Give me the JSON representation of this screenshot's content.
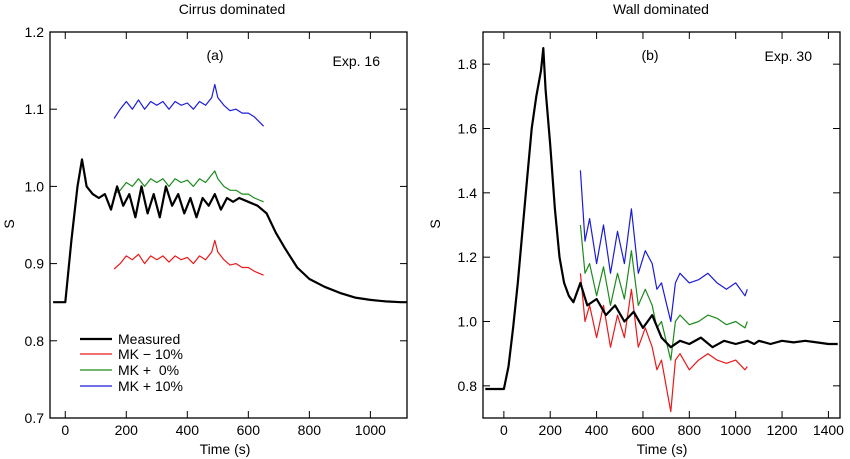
{
  "chart_data": [
    {
      "type": "line",
      "title": "Cirrus dominated",
      "panel_label": "(a)",
      "annotation": "Exp. 16",
      "xlabel": "Time (s)",
      "ylabel": "",
      "xlim": [
        -50,
        1120
      ],
      "ylim": [
        0.7,
        1.2
      ],
      "xticks": [
        0,
        200,
        400,
        600,
        800,
        1000
      ],
      "yticks": [
        0.7,
        0.8,
        0.9,
        1.0,
        1.1,
        1.2
      ],
      "yticklabels": [
        "0.7",
        "0.8",
        "0.9",
        "1.0",
        "1.1",
        "1.2"
      ],
      "legend": {
        "position": "bottom-left",
        "entries": [
          "Measured",
          "MK − 10%",
          "MK +  0%",
          "MK + 10%"
        ]
      },
      "series": [
        {
          "name": "Measured",
          "color": "#000000",
          "x": [
            -40,
            0,
            20,
            40,
            55,
            70,
            90,
            110,
            130,
            150,
            170,
            190,
            210,
            230,
            250,
            270,
            290,
            310,
            330,
            350,
            370,
            390,
            410,
            430,
            450,
            470,
            490,
            510,
            530,
            550,
            570,
            600,
            630,
            660,
            690,
            720,
            760,
            800,
            850,
            900,
            950,
            1000,
            1050,
            1100,
            1120
          ],
          "y": [
            0.85,
            0.85,
            0.93,
            1.0,
            1.035,
            1.0,
            0.99,
            0.985,
            0.99,
            0.97,
            1.0,
            0.975,
            0.99,
            0.96,
            1.0,
            0.965,
            0.99,
            0.96,
            1.0,
            0.975,
            0.99,
            0.965,
            0.985,
            0.96,
            0.985,
            0.975,
            0.99,
            0.97,
            0.985,
            0.98,
            0.985,
            0.98,
            0.975,
            0.965,
            0.94,
            0.92,
            0.895,
            0.88,
            0.87,
            0.862,
            0.856,
            0.853,
            0.851,
            0.85,
            0.85
          ]
        },
        {
          "name": "MK − 10%",
          "color": "#e8191a",
          "x": [
            160,
            180,
            200,
            220,
            240,
            260,
            280,
            300,
            320,
            340,
            360,
            380,
            400,
            420,
            440,
            460,
            480,
            490,
            500,
            520,
            540,
            560,
            580,
            600,
            620,
            650
          ],
          "y": [
            0.893,
            0.9,
            0.91,
            0.905,
            0.912,
            0.9,
            0.91,
            0.905,
            0.91,
            0.902,
            0.91,
            0.905,
            0.908,
            0.9,
            0.91,
            0.905,
            0.915,
            0.93,
            0.915,
            0.905,
            0.898,
            0.9,
            0.895,
            0.895,
            0.89,
            0.885
          ]
        },
        {
          "name": "MK +  0%",
          "color": "#1e8a1e",
          "x": [
            160,
            180,
            200,
            220,
            240,
            260,
            280,
            300,
            320,
            340,
            360,
            380,
            400,
            420,
            440,
            460,
            480,
            490,
            500,
            520,
            540,
            560,
            580,
            600,
            620,
            650
          ],
          "y": [
            0.99,
            0.995,
            1.005,
            1.0,
            1.01,
            1.0,
            1.01,
            1.005,
            1.01,
            1.0,
            1.01,
            1.005,
            1.008,
            1.0,
            1.01,
            1.005,
            1.015,
            1.02,
            1.01,
            1.0,
            0.995,
            0.995,
            0.99,
            0.99,
            0.985,
            0.98
          ]
        },
        {
          "name": "MK + 10%",
          "color": "#1c1cd8",
          "x": [
            160,
            180,
            200,
            220,
            240,
            260,
            280,
            300,
            320,
            340,
            360,
            380,
            400,
            420,
            440,
            460,
            480,
            490,
            500,
            520,
            540,
            560,
            580,
            600,
            620,
            650
          ],
          "y": [
            1.088,
            1.1,
            1.11,
            1.1,
            1.112,
            1.1,
            1.11,
            1.105,
            1.11,
            1.1,
            1.11,
            1.105,
            1.108,
            1.1,
            1.11,
            1.105,
            1.115,
            1.132,
            1.115,
            1.105,
            1.098,
            1.1,
            1.095,
            1.095,
            1.09,
            1.078
          ]
        }
      ]
    },
    {
      "type": "line",
      "title": "Wall dominated",
      "panel_label": "(b)",
      "annotation": "Exp. 30",
      "xlabel": "Time (s)",
      "ylabel": "S",
      "xlim": [
        -90,
        1450
      ],
      "ylim": [
        0.7,
        1.9
      ],
      "xticks": [
        0,
        200,
        400,
        600,
        800,
        1000,
        1200,
        1400
      ],
      "yticks": [
        0.8,
        1.0,
        1.2,
        1.4,
        1.6,
        1.8
      ],
      "yticklabels": [
        "0.8",
        "1.0",
        "1.2",
        "1.4",
        "1.6",
        "1.8"
      ],
      "series": [
        {
          "name": "Measured",
          "color": "#000000",
          "x": [
            -80,
            0,
            20,
            40,
            60,
            80,
            100,
            120,
            140,
            160,
            170,
            180,
            200,
            220,
            240,
            260,
            280,
            300,
            330,
            360,
            400,
            440,
            480,
            520,
            560,
            600,
            640,
            680,
            720,
            760,
            800,
            850,
            900,
            950,
            1000,
            1050,
            1080,
            1100,
            1150,
            1200,
            1250,
            1300,
            1350,
            1400,
            1440
          ],
          "y": [
            0.79,
            0.79,
            0.86,
            0.98,
            1.12,
            1.28,
            1.44,
            1.6,
            1.7,
            1.78,
            1.85,
            1.72,
            1.55,
            1.35,
            1.2,
            1.12,
            1.08,
            1.06,
            1.12,
            1.05,
            1.07,
            1.02,
            1.05,
            1.0,
            1.03,
            0.98,
            1.02,
            0.95,
            0.92,
            0.94,
            0.93,
            0.95,
            0.92,
            0.94,
            0.93,
            0.94,
            0.93,
            0.94,
            0.93,
            0.94,
            0.935,
            0.94,
            0.935,
            0.93,
            0.93
          ]
        },
        {
          "name": "MK − 10%",
          "color": "#e8191a",
          "x": [
            330,
            350,
            370,
            400,
            430,
            460,
            490,
            520,
            550,
            580,
            610,
            640,
            660,
            680,
            700,
            720,
            740,
            760,
            800,
            840,
            880,
            920,
            960,
            1000,
            1040,
            1050
          ],
          "y": [
            1.15,
            1.0,
            1.05,
            0.95,
            1.05,
            0.92,
            1.02,
            0.95,
            1.1,
            0.92,
            0.98,
            0.92,
            0.85,
            0.88,
            0.8,
            0.72,
            0.88,
            0.9,
            0.85,
            0.88,
            0.9,
            0.88,
            0.87,
            0.88,
            0.85,
            0.86
          ]
        },
        {
          "name": "MK +  0%",
          "color": "#1e8a1e",
          "x": [
            330,
            350,
            370,
            400,
            430,
            460,
            490,
            520,
            550,
            580,
            610,
            640,
            660,
            680,
            700,
            720,
            740,
            760,
            800,
            840,
            880,
            920,
            960,
            1000,
            1040,
            1050
          ],
          "y": [
            1.3,
            1.15,
            1.18,
            1.08,
            1.17,
            1.05,
            1.15,
            1.07,
            1.22,
            1.05,
            1.1,
            1.05,
            0.98,
            1.0,
            0.94,
            0.88,
            1.0,
            1.02,
            0.99,
            1.0,
            1.02,
            1.01,
            0.99,
            1.0,
            0.98,
            1.0
          ]
        },
        {
          "name": "MK + 10%",
          "color": "#1c1cd8",
          "x": [
            330,
            350,
            370,
            400,
            430,
            460,
            490,
            520,
            550,
            580,
            610,
            640,
            660,
            680,
            700,
            720,
            740,
            760,
            800,
            840,
            880,
            920,
            960,
            1000,
            1040,
            1050
          ],
          "y": [
            1.47,
            1.25,
            1.32,
            1.18,
            1.3,
            1.15,
            1.28,
            1.18,
            1.35,
            1.15,
            1.22,
            1.18,
            1.1,
            1.12,
            1.06,
            1.0,
            1.12,
            1.15,
            1.12,
            1.13,
            1.15,
            1.12,
            1.1,
            1.12,
            1.08,
            1.1
          ]
        }
      ]
    }
  ]
}
